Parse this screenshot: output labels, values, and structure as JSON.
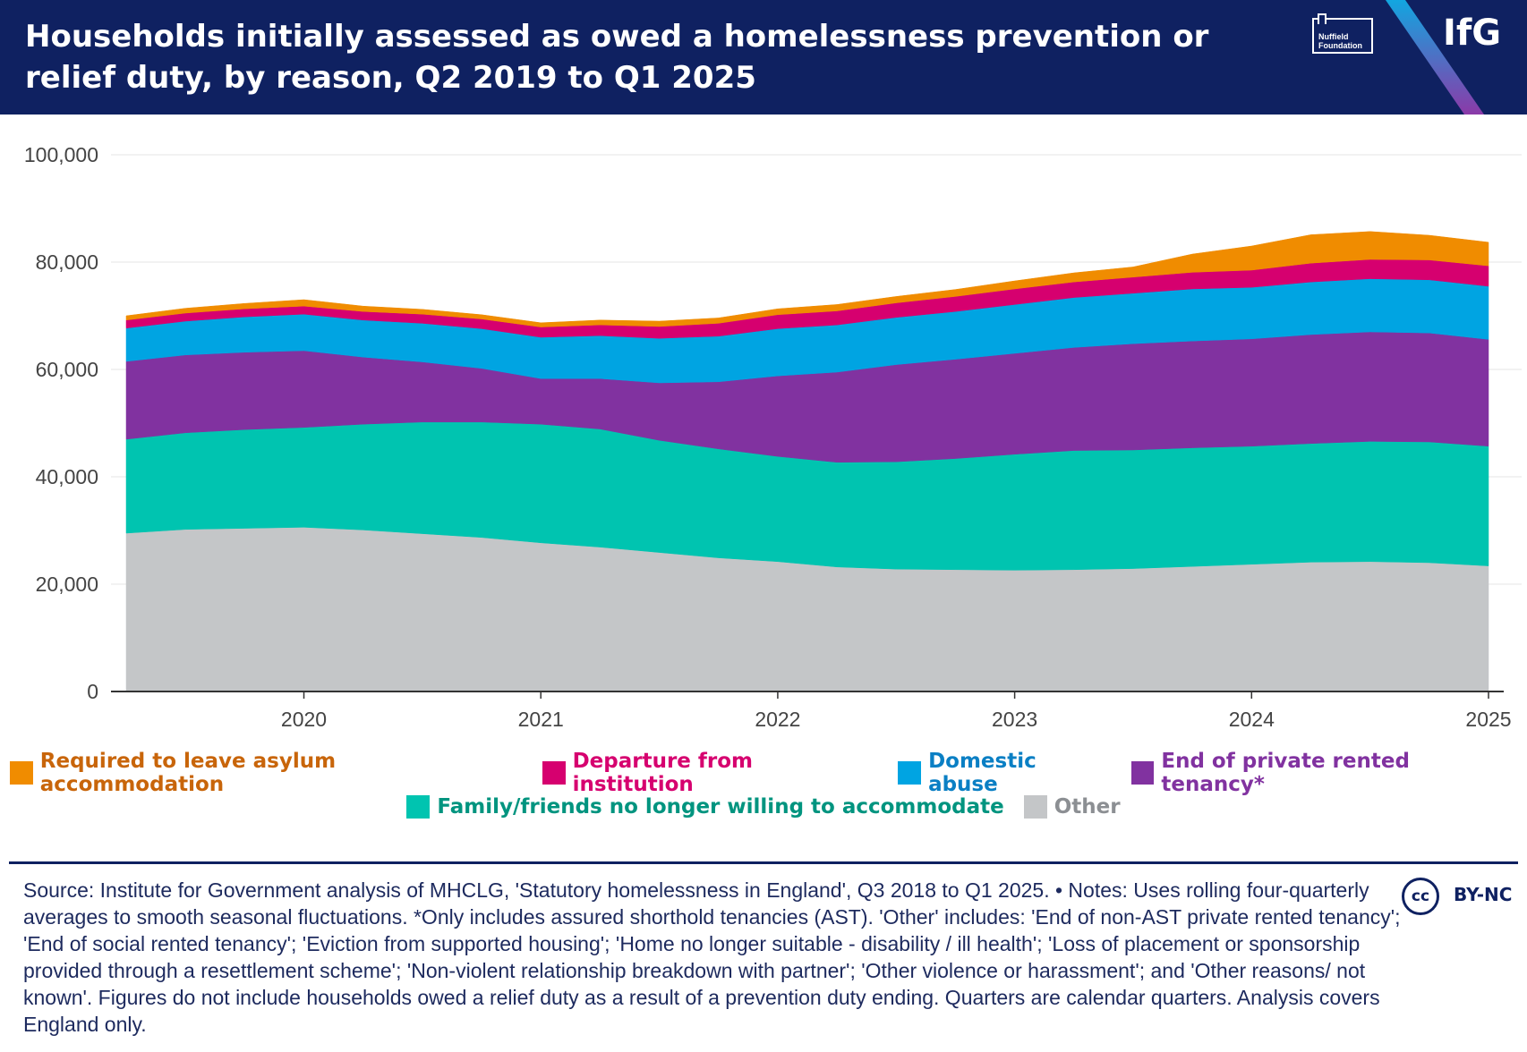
{
  "header": {
    "title": "Households initially assessed as owed a homelessness prevention or relief duty, by reason, Q2 2019 to Q1 2025",
    "partner_logo_line1": "Nuffield",
    "partner_logo_line2": "Foundation",
    "brand": "IfG"
  },
  "chart_data": {
    "type": "area",
    "stacked": true,
    "title": "Households initially assessed as owed a homelessness prevention or relief duty, by reason, Q2 2019 to Q1 2025",
    "xlabel": "",
    "ylabel": "",
    "xlim": [
      2019.25,
      2025.0
    ],
    "ylim": [
      0,
      100000
    ],
    "x_ticks": [
      2020,
      2021,
      2022,
      2023,
      2024,
      2025
    ],
    "x_tick_labels": [
      "2020",
      "2021",
      "2022",
      "2023",
      "2024",
      "2025"
    ],
    "y_ticks": [
      0,
      20000,
      40000,
      60000,
      80000,
      100000
    ],
    "y_tick_labels": [
      "0",
      "20,000",
      "40,000",
      "60,000",
      "80,000",
      "100,000"
    ],
    "grid": true,
    "x": [
      2019.25,
      2019.5,
      2019.75,
      2020.0,
      2020.25,
      2020.5,
      2020.75,
      2021.0,
      2021.25,
      2021.5,
      2021.75,
      2022.0,
      2022.25,
      2022.5,
      2022.75,
      2023.0,
      2023.25,
      2023.5,
      2023.75,
      2024.0,
      2024.25,
      2024.5,
      2024.75,
      2025.0
    ],
    "series": [
      {
        "name": "Other",
        "color": "#c4c6c8",
        "values": [
          29500,
          30200,
          30400,
          30600,
          30100,
          29400,
          28700,
          27700,
          26900,
          25900,
          24900,
          24200,
          23200,
          22800,
          22700,
          22600,
          22700,
          22900,
          23300,
          23700,
          24100,
          24200,
          24000,
          23400
        ]
      },
      {
        "name": "Family/friends no longer willing to accommodate",
        "color": "#00c4b0",
        "values": [
          17500,
          18000,
          18400,
          18600,
          19700,
          20800,
          21500,
          22100,
          22000,
          20900,
          20300,
          19600,
          19500,
          20000,
          20700,
          21600,
          22200,
          22100,
          22100,
          22000,
          22100,
          22400,
          22500,
          22300
        ]
      },
      {
        "name": "End of private rented tenancy*",
        "color": "#8132a0",
        "values": [
          14500,
          14500,
          14400,
          14300,
          12500,
          11200,
          10000,
          8500,
          9400,
          10700,
          12500,
          15000,
          16800,
          18100,
          18500,
          18800,
          19200,
          19800,
          19900,
          20000,
          20300,
          20400,
          20300,
          19900
        ]
      },
      {
        "name": "Domestic abuse",
        "color": "#00a4e2",
        "values": [
          6200,
          6300,
          6600,
          6800,
          6900,
          7200,
          7400,
          7700,
          8000,
          8300,
          8500,
          8800,
          8800,
          8800,
          8900,
          9100,
          9300,
          9400,
          9700,
          9600,
          9800,
          9900,
          9900,
          9900
        ]
      },
      {
        "name": "Departure from institution",
        "color": "#d6006f",
        "values": [
          1500,
          1500,
          1500,
          1500,
          1600,
          1700,
          1800,
          1900,
          2000,
          2200,
          2400,
          2600,
          2600,
          2700,
          2800,
          2900,
          2900,
          3000,
          3100,
          3200,
          3500,
          3600,
          3700,
          3800
        ]
      },
      {
        "name": "Required to leave asylum accommodation",
        "color": "#f08c00",
        "values": [
          800,
          900,
          1000,
          1200,
          1000,
          900,
          800,
          800,
          900,
          1000,
          1000,
          1100,
          1200,
          1200,
          1300,
          1500,
          1700,
          1900,
          3400,
          4500,
          5300,
          5200,
          4600,
          4400
        ]
      }
    ],
    "legend": {
      "position": "bottom",
      "rows": [
        [
          {
            "label": "Required to leave asylum accommodation",
            "color": "#f08c00",
            "text_color": "#c8650a"
          },
          {
            "label": "Departure from institution",
            "color": "#d6006f",
            "text_color": "#d6006f"
          },
          {
            "label": "Domestic abuse",
            "color": "#00a4e2",
            "text_color": "#0a7fc4"
          },
          {
            "label": "End of private rented tenancy*",
            "color": "#8132a0",
            "text_color": "#8132a0"
          }
        ],
        [
          {
            "label": "Family/friends no longer willing to accommodate",
            "color": "#00c4b0",
            "text_color": "#00947f"
          },
          {
            "label": "Other",
            "color": "#c4c6c8",
            "text_color": "#8c8f93"
          }
        ]
      ]
    }
  },
  "footer": {
    "source": "Source: Institute for Government analysis of MHCLG, 'Statutory homelessness in England', Q3 2018 to Q1 2025. • Notes: Uses rolling four-quarterly averages to smooth seasonal fluctuations. *Only includes assured shorthold tenancies (AST). 'Other' includes: 'End of non-AST private rented tenancy'; 'End of social rented tenancy'; 'Eviction from supported housing'; 'Home no longer suitable - disability / ill health'; 'Loss of placement or sponsorship provided through a resettlement scheme'; 'Non-violent relationship breakdown with partner'; 'Other violence or harassment'; and 'Other reasons/ not known'. Figures do not include households owed a relief duty as a result of a prevention duty ending. Quarters are calendar quarters. Analysis covers England only.",
    "license_icon": "cc",
    "license": "BY-NC"
  }
}
